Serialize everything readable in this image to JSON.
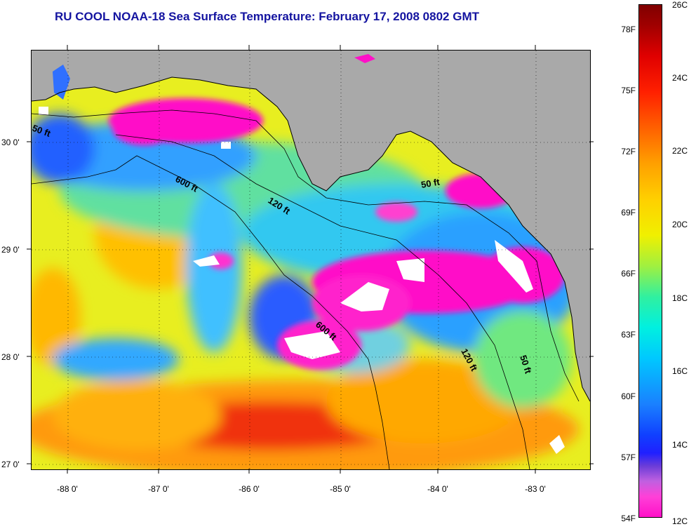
{
  "title": "RU COOL  NOAA-18  Sea Surface Temperature:  February 17, 2008 0802 GMT",
  "latitude_labels": [
    "30 0'",
    "29 0'",
    "28 0'",
    "27 0'"
  ],
  "longitude_labels": [
    "-88 0'",
    "-87 0'",
    "-86 0'",
    "-85 0'",
    "-84 0'",
    "-83 0'"
  ],
  "isobath_labels": [
    "50 ft",
    "600 ft",
    "120 ft",
    "50 ft",
    "600 ft",
    "120 ft",
    "50 ft"
  ],
  "colorbar": {
    "fahrenheit_labels": [
      "78F",
      "75F",
      "72F",
      "69F",
      "66F",
      "63F",
      "60F",
      "57F",
      "54F"
    ],
    "celsius_labels": [
      "26C",
      "24C",
      "22C",
      "20C",
      "18C",
      "16C",
      "14C",
      "12C"
    ],
    "range_c": [
      12,
      26
    ]
  },
  "colors": {
    "land": "#a9a9a9",
    "cold_pink": "#ff10c8",
    "title_blue": "#1414a0"
  }
}
